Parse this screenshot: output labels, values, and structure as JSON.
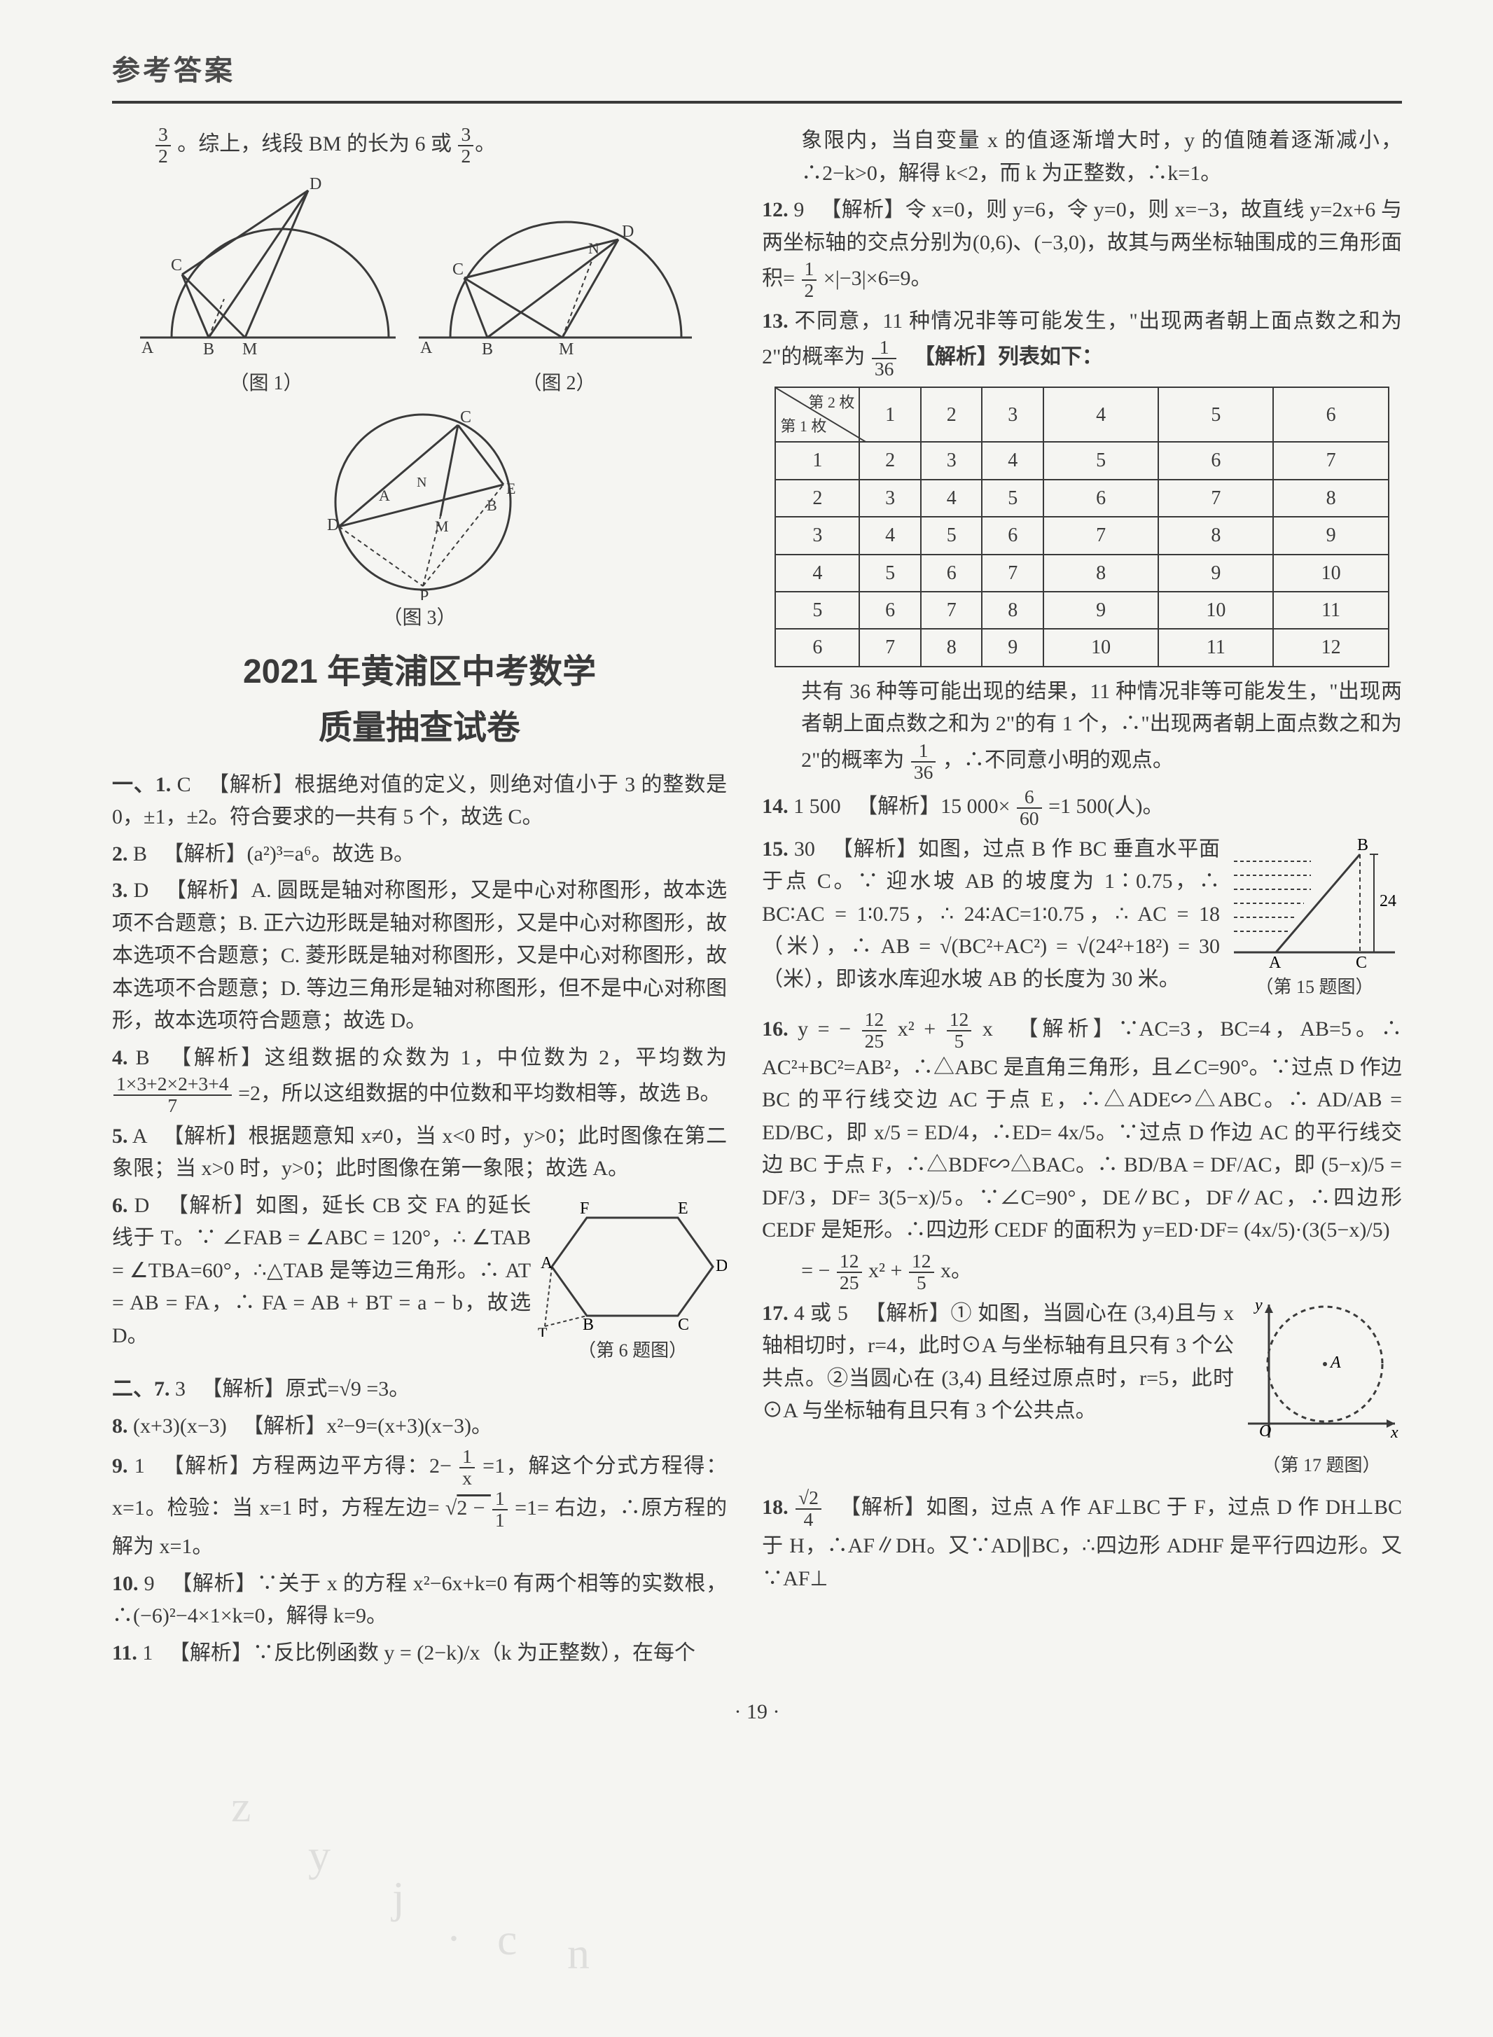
{
  "header": {
    "title": "参考答案"
  },
  "left": {
    "top_fragment_a": "3",
    "top_fragment_b": "2",
    "top_fragment_text": "。综上，线段 BM 的长为 6 或",
    "top_fragment_c": "3",
    "top_fragment_d": "2",
    "diag1_caption": "（图 1）",
    "diag2_caption": "（图 2）",
    "diag3_caption": "（图 3）",
    "big_title": "2021 年黄浦区中考数学",
    "big_subtitle": "质量抽查试卷",
    "q1_num": "一、1.",
    "q1_ans": "C",
    "q1_text": "【解析】根据绝对值的定义，则绝对值小于 3 的整数是 0，±1，±2。符合要求的一共有 5 个，故选 C。",
    "q2_num": "2.",
    "q2_ans": "B",
    "q2_text": "【解析】(a²)³=a⁶。故选 B。",
    "q3_num": "3.",
    "q3_ans": "D",
    "q3_text": "【解析】A. 圆既是轴对称图形，又是中心对称图形，故本选项不合题意；B. 正六边形既是轴对称图形，又是中心对称图形，故本选项不合题意；C. 菱形既是轴对称图形，又是中心对称图形，故本选项不合题意；D. 等边三角形是轴对称图形，但不是中心对称图形，故本选项符合题意；故选 D。",
    "q4_num": "4.",
    "q4_ans": "B",
    "q4_text_a": "【解析】这组数据的众数为 1，中位数为 2，平均数为",
    "q4_frac_n": "1×3+2×2+3+4",
    "q4_frac_d": "7",
    "q4_text_b": "=2，所以这组数据的中位数和平均数相等，故选 B。",
    "q5_num": "5.",
    "q5_ans": "A",
    "q5_text": "【解析】根据题意知 x≠0，当 x<0 时，y>0；此时图像在第二象限；当 x>0 时，y>0；此时图像在第一象限；故选 A。",
    "q6_num": "6.",
    "q6_ans": "D",
    "q6_text": "【解析】如图，延长 CB 交 FA 的延长线于 T。∵ ∠FAB = ∠ABC = 120°，∴ ∠TAB = ∠TBA=60°，∴△TAB 是等边三角形。∴ AT = AB = FA，∴ FA = AB + BT = a − b，故选 D。",
    "q6_fig_caption": "（第 6 题图）",
    "q7_num": "二、7.",
    "q7_ans": "3",
    "q7_text": "【解析】原式=√9 =3。",
    "q8_num": "8.",
    "q8_ans": "(x+3)(x−3)",
    "q8_text": "【解析】x²−9=(x+3)(x−3)。",
    "q9_num": "9.",
    "q9_ans": "1",
    "q9_text_a": "【解析】方程两边平方得：2−",
    "q9_frac1_n": "1",
    "q9_frac1_d": "x",
    "q9_text_b": "=1，解这个分式方程得：x=1。检验：当 x=1 时，方程左边=",
    "q9_sqrt": "2 − ",
    "q9_frac2_n": "1",
    "q9_frac2_d": "1",
    "q9_text_c": " =1= 右边，∴原方程的解为 x=1。",
    "q10_num": "10.",
    "q10_ans": "9",
    "q10_text": "【解析】∵关于 x 的方程 x²−6x+k=0 有两个相等的实数根，∴(−6)²−4×1×k=0，解得 k=9。",
    "q11_num": "11.",
    "q11_ans": "1",
    "q11_text": "【解析】∵反比例函数 y = (2−k)/x（k 为正整数），在每个"
  },
  "right": {
    "r_top": "象限内，当自变量 x 的值逐渐增大时，y 的值随着逐渐减小，∴2−k>0，解得 k<2，而 k 为正整数，∴k=1。",
    "q12_num": "12.",
    "q12_ans": "9",
    "q12_text_a": "【解析】令 x=0，则 y=6，令 y=0，则 x=−3，故直线 y=2x+6 与两坐标轴的交点分别为(0,6)、(−3,0)，故其与两坐标轴围成的三角形面积=",
    "q12_frac_n": "1",
    "q12_frac_d": "2",
    "q12_text_b": "×|−3|×6=9。",
    "q13_num": "13.",
    "q13_text_a": "不同意，11 种情况非等可能发生，\"出现两者朝上面点数之和为 2\"的概率为",
    "q13_frac_n": "1",
    "q13_frac_d": "36",
    "q13_text_b": "【解析】列表如下：",
    "table": {
      "diag_top": "第 2 枚",
      "diag_bottom": "第 1 枚",
      "cols": [
        "1",
        "2",
        "3",
        "4",
        "5",
        "6"
      ],
      "rows": [
        {
          "h": "1",
          "c": [
            "2",
            "3",
            "4",
            "5",
            "6",
            "7"
          ]
        },
        {
          "h": "2",
          "c": [
            "3",
            "4",
            "5",
            "6",
            "7",
            "8"
          ]
        },
        {
          "h": "3",
          "c": [
            "4",
            "5",
            "6",
            "7",
            "8",
            "9"
          ]
        },
        {
          "h": "4",
          "c": [
            "5",
            "6",
            "7",
            "8",
            "9",
            "10"
          ]
        },
        {
          "h": "5",
          "c": [
            "6",
            "7",
            "8",
            "9",
            "10",
            "11"
          ]
        },
        {
          "h": "6",
          "c": [
            "7",
            "8",
            "9",
            "10",
            "11",
            "12"
          ]
        }
      ]
    },
    "q13_text_c": "共有 36 种等可能出现的结果，11 种情况非等可能发生，\"出现两者朝上面点数之和为 2\"的有 1 个，∴\"出现两者朝上面点数之和为 2\"的概率为",
    "q13_text_d": "，∴不同意小明的观点。",
    "q14_num": "14.",
    "q14_ans": "1 500",
    "q14_text_a": "【解析】15 000×",
    "q14_frac_n": "6",
    "q14_frac_d": "60",
    "q14_text_b": "=1 500(人)。",
    "q15_num": "15.",
    "q15_ans": "30",
    "q15_text": "【解析】如图，过点 B 作 BC 垂直水平面于点 C。∵ 迎水坡 AB 的坡度为 1∶0.75，∴ BC∶AC = 1∶0.75，∴ 24∶AC=1∶0.75，∴ AC = 18（米），∴ AB = √(BC²+AC²) = √(24²+18²) = 30（米），即该水库迎水坡 AB 的长度为 30 米。",
    "q15_fig_caption": "（第 15 题图）",
    "q16_num": "16.",
    "q16_ans_a": "y = −",
    "q16_f1n": "12",
    "q16_f1d": "25",
    "q16_ans_b": "x² +",
    "q16_f2n": "12",
    "q16_f2d": "5",
    "q16_ans_c": "x",
    "q16_text": "【解析】∵AC=3，BC=4，AB=5。∴ AC²+BC²=AB²，∴△ABC 是直角三角形，且∠C=90°。∵过点 D 作边 BC 的平行线交边 AC 于点 E，∴△ADE∽△ABC。∴ AD/AB = ED/BC，即 x/5 = ED/4，∴ED= 4x/5。∵过点 D 作边 AC 的平行线交边 BC 于点 F，∴△BDF∽△BAC。∴ BD/BA = DF/AC，即 (5−x)/5 = DF/3，DF= 3(5−x)/5。∵∠C=90°，DE∥BC，DF∥AC，∴四边形 CEDF 是矩形。∴四边形 CEDF 的面积为 y=ED·DF= (4x/5)·(3(5−x)/5)",
    "q16_text_b": "= −",
    "q16_f3n": "12",
    "q16_f3d": "25",
    "q16_text_c": "x² +",
    "q16_f4n": "12",
    "q16_f4d": "5",
    "q16_text_d": "x。",
    "q17_num": "17.",
    "q17_ans": "4 或 5",
    "q17_text": "【解析】① 如图，当圆心在 (3,4)且与 x 轴相切时，r=4，此时⊙A 与坐标轴有且只有 3 个公共点。②当圆心在 (3,4) 且经过原点时，r=5，此时⊙A 与坐标轴有且只有 3 个公共点。",
    "q17_fig_caption": "（第 17 题图）",
    "q18_num": "18.",
    "q18_frac_n": "√2",
    "q18_frac_d": "4",
    "q18_text": "【解析】如图，过点 A 作 AF⊥BC 于 F，过点 D 作 DH⊥BC 于 H，∴AF∥DH。又∵AD∥BC，∴四边形 ADHF 是平行四边形。又∵AF⊥"
  },
  "page_num": "· 19 ·",
  "colors": {
    "text": "#3a3a3a",
    "bg": "#f5f5f2",
    "rule": "#3a3a3a"
  }
}
